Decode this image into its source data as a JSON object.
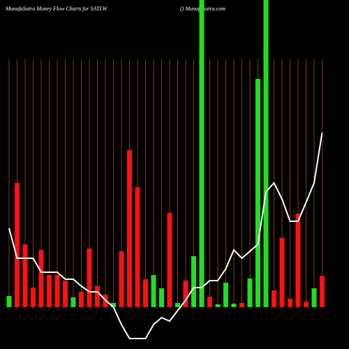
{
  "chart_data": {
    "type": "bar-line",
    "title": "MunafaSutra  Money Flow  Charts for SATLW",
    "subtitle": "() MunafaSutra.com",
    "grid": true,
    "grid_color": "#a0520a",
    "line_color": "#ffffff",
    "ylim": [
      -60,
      440
    ],
    "series": [
      {
        "colors": [
          "#22dd22",
          "#ff1111",
          "#ff1111",
          "#ff1111",
          "#ff1111",
          "#ff1111",
          "#ff1111",
          "#ff1111",
          "#22dd22",
          "#ff1111",
          "#ff1111",
          "#ff1111",
          "#ff1111",
          "#22dd22",
          "#ff1111",
          "#ff1111",
          "#ff1111",
          "#ff1111",
          "#22dd22",
          "#22dd22",
          "#ff1111",
          "#22dd22",
          "#ff1111",
          "#22dd22",
          "#22dd22",
          "#ff1111",
          "#22dd22",
          "#22dd22",
          "#22dd22",
          "#ff1111",
          "#22dd22",
          "#22dd22",
          "#22dd22",
          "#ff1111",
          "#ff1111",
          "#ff1111",
          "#ff1111",
          "#ff1111",
          "#22dd22",
          "#ff1111"
        ],
        "values": [
          16,
          178,
          90,
          28,
          82,
          46,
          46,
          38,
          14,
          22,
          84,
          30,
          18,
          6,
          80,
          225,
          172,
          40,
          46,
          27,
          135,
          6,
          38,
          73,
          440,
          15,
          4,
          35,
          5,
          6,
          41,
          327,
          440,
          24,
          99,
          12,
          134,
          8,
          27,
          45
        ]
      },
      {
        "values": [
          113,
          70,
          70,
          70,
          50,
          50,
          50,
          40,
          40,
          30,
          22,
          22,
          10,
          0,
          -25,
          -45,
          -45,
          -45,
          -25,
          -15,
          -20,
          -5,
          10,
          28,
          28,
          38,
          38,
          55,
          82,
          70,
          80,
          90,
          165,
          178,
          155,
          123,
          123,
          150,
          178,
          250
        ]
      }
    ]
  }
}
